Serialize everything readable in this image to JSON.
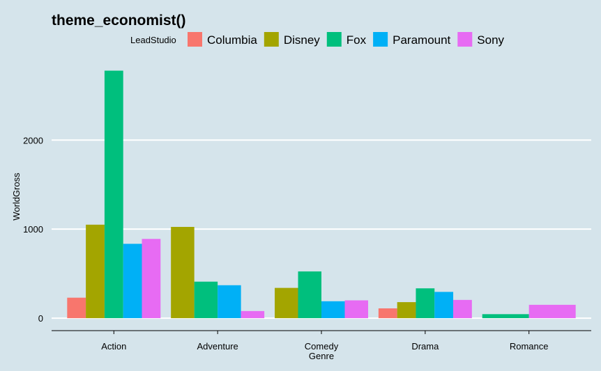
{
  "chart_data": {
    "type": "bar",
    "title": "theme_economist()",
    "xlabel": "Genre",
    "ylabel": "WorldGross",
    "legend_title": "LeadStudio",
    "legend_position": "top",
    "categories": [
      "Action",
      "Adventure",
      "Comedy",
      "Drama",
      "Romance"
    ],
    "series": [
      {
        "name": "Columbia",
        "color": "#f8766d",
        "values": [
          230,
          null,
          null,
          110,
          null
        ]
      },
      {
        "name": "Disney",
        "color": "#a3a500",
        "values": [
          1050,
          1025,
          340,
          180,
          null
        ]
      },
      {
        "name": "Fox",
        "color": "#00bf7d",
        "values": [
          2780,
          410,
          525,
          335,
          45
        ]
      },
      {
        "name": "Paramount",
        "color": "#00b0f6",
        "values": [
          835,
          370,
          190,
          295,
          null
        ]
      },
      {
        "name": "Sony",
        "color": "#e76bf3",
        "values": [
          890,
          80,
          200,
          205,
          150
        ]
      }
    ],
    "yticks": [
      0,
      1000,
      2000
    ],
    "ytick_labels": [
      "0",
      "1000",
      "2000"
    ],
    "ylim": [
      -140,
      2870
    ],
    "grid": "horizontal-major"
  }
}
